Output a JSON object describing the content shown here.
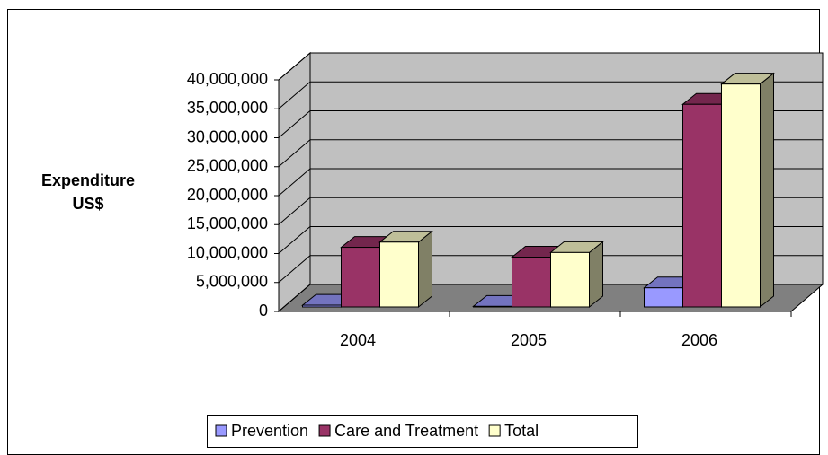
{
  "chart_data": {
    "type": "bar3d",
    "y_label": "Expenditure US$",
    "categories": [
      "2004",
      "2005",
      "2006"
    ],
    "series": [
      {
        "name": "Prevention",
        "color": "#9999ff",
        "values": [
          300000,
          100000,
          3300000
        ]
      },
      {
        "name": "Care and Treatment",
        "color": "#993366",
        "values": [
          10300000,
          8600000,
          35000000
        ]
      },
      {
        "name": "Total",
        "color": "#ffffcc",
        "values": [
          11200000,
          9400000,
          38500000
        ]
      }
    ],
    "ylim": [
      0,
      40000000
    ],
    "yticks": [
      0,
      {
        "value": 5000000,
        "label": "5,000,000"
      },
      {
        "value": 10000000,
        "label": "10,000,000"
      },
      {
        "value": 15000000,
        "label": "15,000,000"
      },
      {
        "value": 20000000,
        "label": "20,000,000"
      },
      {
        "value": 25000000,
        "label": "25,000,000"
      },
      {
        "value": 30000000,
        "label": "30,000,000"
      },
      {
        "value": 35000000,
        "label": "35,000,000"
      },
      {
        "value": 40000000,
        "label": "40,000,000"
      }
    ],
    "grid": true,
    "legend": "bottom"
  }
}
